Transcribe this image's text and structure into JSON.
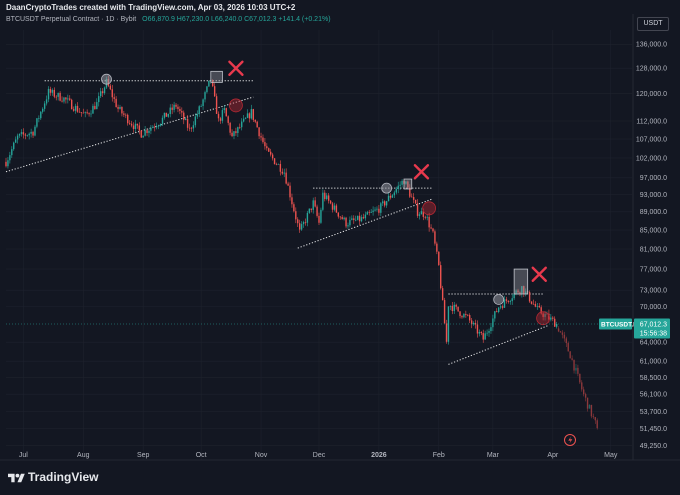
{
  "header": {
    "credit": "DaanCryptoTrades created with TradingView.com, Apr 03, 2026 10:03 UTC+2",
    "symbol": "BTCUSDT Perpetual Contract · 1D · Bybit",
    "ohlc": "O66,870.9 H67,230.0 L66,240.0 C67,012.3 +141.4 (+0.21%)",
    "currency": "USDT"
  },
  "price_tag": {
    "symbol": "BTCUSDT.P",
    "price": "67,012.3",
    "countdown": "15:56:38"
  },
  "footer": {
    "brand": "TradingView"
  },
  "colors": {
    "background": "#131722",
    "up": "#26a69a",
    "down": "#ef5350",
    "grid": "#1e222d",
    "cross": "#e8394d"
  },
  "chart_data": {
    "type": "candlestick",
    "y_scale": "log",
    "ylim": [
      47500,
      141000
    ],
    "y_ticks": [
      {
        "v": 136000,
        "label": "136,000.0"
      },
      {
        "v": 128000,
        "label": "128,000.0"
      },
      {
        "v": 120000,
        "label": "120,000.0"
      },
      {
        "v": 112000,
        "label": "112,000.0"
      },
      {
        "v": 107000,
        "label": "107,000.0"
      },
      {
        "v": 102000,
        "label": "102,000.0"
      },
      {
        "v": 97000,
        "label": "97,000.0"
      },
      {
        "v": 93000,
        "label": "93,000.0"
      },
      {
        "v": 89000,
        "label": "89,000.0"
      },
      {
        "v": 85000,
        "label": "85,000.0"
      },
      {
        "v": 81000,
        "label": "81,000.0"
      },
      {
        "v": 77000,
        "label": "77,000.0"
      },
      {
        "v": 73000,
        "label": "73,000.0"
      },
      {
        "v": 70000,
        "label": "70,000.0"
      },
      {
        "v": 64000,
        "label": "64,000.0"
      },
      {
        "v": 61000,
        "label": "61,000.0"
      },
      {
        "v": 58500,
        "label": "58,500.0"
      },
      {
        "v": 56100,
        "label": "56,100.0"
      },
      {
        "v": 53700,
        "label": "53,700.0"
      },
      {
        "v": 51450,
        "label": "51,450.0"
      },
      {
        "v": 49250,
        "label": "49,250.0"
      }
    ],
    "xlim": [
      "2025-06-22",
      "2026-05-12"
    ],
    "x_ticks": [
      {
        "date": "2025-07-01",
        "label": "Jul"
      },
      {
        "date": "2025-08-01",
        "label": "Aug"
      },
      {
        "date": "2025-09-01",
        "label": "Sep"
      },
      {
        "date": "2025-10-01",
        "label": "Oct"
      },
      {
        "date": "2025-11-01",
        "label": "Nov"
      },
      {
        "date": "2025-12-01",
        "label": "Dec"
      },
      {
        "date": "2026-01-01",
        "label": "2026"
      },
      {
        "date": "2026-02-01",
        "label": "Feb"
      },
      {
        "date": "2026-03-01",
        "label": "Mar"
      },
      {
        "date": "2026-04-01",
        "label": "Apr"
      },
      {
        "date": "2026-05-01",
        "label": "May"
      }
    ],
    "last_price": 67012.3,
    "price_anchors": [
      [
        "2025-06-22",
        101000
      ],
      [
        "2025-06-28",
        107500
      ],
      [
        "2025-07-06",
        109000
      ],
      [
        "2025-07-14",
        120500
      ],
      [
        "2025-07-22",
        118500
      ],
      [
        "2025-08-02",
        113500
      ],
      [
        "2025-08-08",
        117000
      ],
      [
        "2025-08-13",
        123500
      ],
      [
        "2025-08-19",
        115500
      ],
      [
        "2025-08-31",
        108500
      ],
      [
        "2025-09-10",
        112000
      ],
      [
        "2025-09-18",
        116500
      ],
      [
        "2025-09-25",
        109500
      ],
      [
        "2025-10-01",
        116500
      ],
      [
        "2025-10-06",
        124500
      ],
      [
        "2025-10-10",
        112000
      ],
      [
        "2025-10-13",
        115000
      ],
      [
        "2025-10-17",
        107500
      ],
      [
        "2025-10-27",
        114500
      ],
      [
        "2025-11-04",
        103500
      ],
      [
        "2025-11-13",
        98500
      ],
      [
        "2025-11-21",
        84500
      ],
      [
        "2025-11-28",
        91000
      ],
      [
        "2025-12-01",
        86500
      ],
      [
        "2025-12-03",
        93000
      ],
      [
        "2025-12-15",
        86500
      ],
      [
        "2025-12-24",
        87500
      ],
      [
        "2026-01-02",
        90000
      ],
      [
        "2026-01-14",
        96500
      ],
      [
        "2026-01-21",
        89000
      ],
      [
        "2026-01-25",
        88500
      ],
      [
        "2026-01-29",
        84000
      ],
      [
        "2026-02-01",
        77500
      ],
      [
        "2026-02-05",
        64000
      ],
      [
        "2026-02-06",
        70500
      ],
      [
        "2026-02-16",
        68000
      ],
      [
        "2026-02-24",
        64500
      ],
      [
        "2026-03-04",
        70000
      ],
      [
        "2026-03-16",
        73500
      ],
      [
        "2026-03-24",
        69500
      ],
      [
        "2026-04-03",
        67012
      ]
    ],
    "projection": [
      [
        "2026-04-03",
        67012
      ],
      [
        "2026-04-10",
        62000
      ],
      [
        "2026-04-17",
        56000
      ],
      [
        "2026-04-24",
        51500
      ]
    ],
    "annotations": [
      {
        "kind": "resistance",
        "from": [
          "2025-07-12",
          124000
        ],
        "to": [
          "2025-10-28",
          124000
        ]
      },
      {
        "kind": "support",
        "from": [
          "2025-06-22",
          98500
        ],
        "to": [
          "2025-10-28",
          119000
        ]
      },
      {
        "kind": "resistance",
        "from": [
          "2025-11-28",
          94500
        ],
        "to": [
          "2026-01-29",
          94500
        ]
      },
      {
        "kind": "support",
        "from": [
          "2025-11-20",
          81200
        ],
        "to": [
          "2026-01-29",
          92000
        ]
      },
      {
        "kind": "resistance",
        "from": [
          "2026-02-06",
          72300
        ],
        "to": [
          "2026-03-27",
          72300
        ]
      },
      {
        "kind": "support",
        "from": [
          "2026-02-06",
          60500
        ],
        "to": [
          "2026-03-30",
          66800
        ]
      },
      {
        "kind": "top-circle",
        "at": [
          "2025-08-13",
          124500
        ]
      },
      {
        "kind": "top-circle",
        "at": [
          "2026-01-05",
          94500
        ]
      },
      {
        "kind": "top-circle",
        "at": [
          "2026-03-04",
          71300
        ]
      },
      {
        "kind": "retest-circle",
        "at": [
          "2025-10-19",
          116500
        ]
      },
      {
        "kind": "retest-circle",
        "at": [
          "2026-01-27",
          89800
        ]
      },
      {
        "kind": "retest-circle",
        "at": [
          "2026-03-27",
          68000
        ]
      },
      {
        "kind": "deviation-box",
        "from": [
          "2025-10-06",
          127000
        ],
        "to": [
          "2025-10-12",
          123500
        ]
      },
      {
        "kind": "deviation-box",
        "from": [
          "2026-01-14",
          96700
        ],
        "to": [
          "2026-01-18",
          94300
        ]
      },
      {
        "kind": "deviation-box",
        "from": [
          "2026-03-12",
          77000
        ],
        "to": [
          "2026-03-19",
          72300
        ]
      },
      {
        "kind": "cross",
        "at": [
          "2025-10-19",
          128000
        ]
      },
      {
        "kind": "cross",
        "at": [
          "2026-01-23",
          98500
        ]
      },
      {
        "kind": "cross",
        "at": [
          "2026-03-25",
          76000
        ]
      }
    ]
  }
}
